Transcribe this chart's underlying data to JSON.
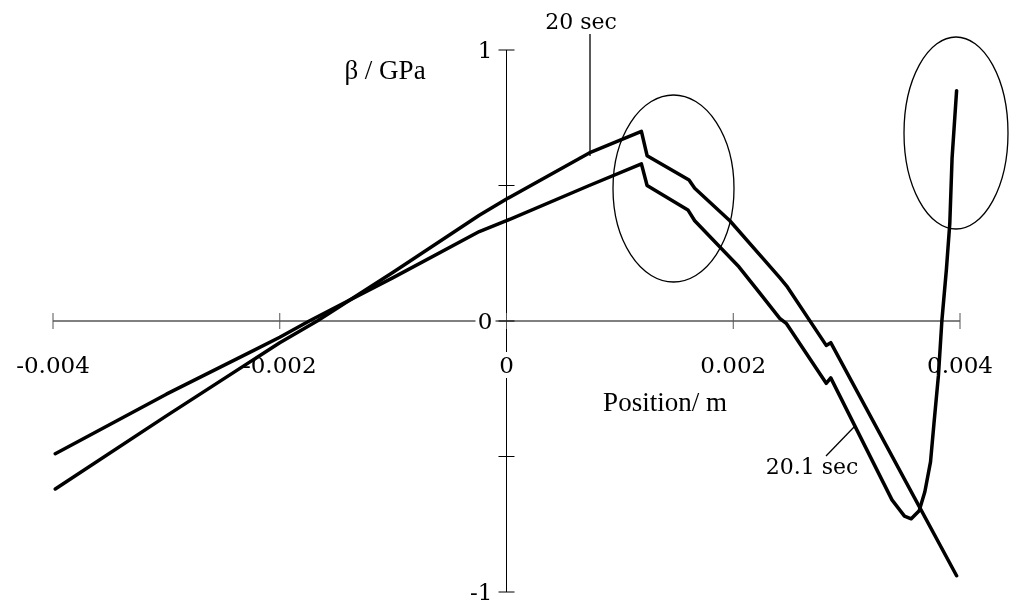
{
  "chart_data": {
    "type": "line",
    "xlabel": "Position/ m",
    "ylabel": "β / GPa",
    "xlim": [
      -0.004,
      0.004
    ],
    "ylim": [
      -1,
      1
    ],
    "xticks": [
      -0.004,
      -0.002,
      0,
      0.002,
      0.004
    ],
    "yticks": [
      -1,
      {
        "value": -0.5,
        "label": null
      },
      0,
      {
        "value": 0.5,
        "label": null
      },
      1
    ],
    "line_style": "solid",
    "series": [
      {
        "name": "20 sec",
        "color": "#000000",
        "x": [
          -0.00398,
          -0.003,
          -0.002,
          -0.00167,
          -0.001,
          -0.00024,
          0,
          0.00073,
          0.00119,
          0.00124,
          0.00161,
          0.00166,
          0.00197,
          0.00241,
          0.00247,
          0.00282,
          0.00286,
          0.00397
        ],
        "values": [
          -0.62,
          -0.35,
          -0.08,
          0,
          0.18,
          0.39,
          0.45,
          0.62,
          0.7,
          0.61,
          0.52,
          0.49,
          0.37,
          0.16,
          0.13,
          -0.09,
          -0.08,
          -0.94
        ]
      },
      {
        "name": "20.1 sec",
        "color": "#000000",
        "x": [
          -0.00398,
          -0.003,
          -0.002,
          -0.00174,
          -0.001,
          -0.00024,
          0,
          0.00073,
          0.00119,
          0.00124,
          0.0016,
          0.00166,
          0.00205,
          0.00241,
          0.00247,
          0.00282,
          0.00286,
          0.0034,
          0.00351,
          0.00357,
          0.00364,
          0.00369,
          0.00374,
          0.00377,
          0.00381,
          0.00384,
          0.00388,
          0.00391,
          0.00393,
          0.00397
        ],
        "values": [
          -0.49,
          -0.27,
          -0.06,
          0,
          0.16,
          0.33,
          0.37,
          0.5,
          0.58,
          0.5,
          0.41,
          0.37,
          0.2,
          0.01,
          -0.01,
          -0.23,
          -0.21,
          -0.66,
          -0.72,
          -0.73,
          -0.7,
          -0.63,
          -0.52,
          -0.38,
          -0.2,
          0,
          0.19,
          0.36,
          0.6,
          0.85
        ]
      }
    ]
  }
}
